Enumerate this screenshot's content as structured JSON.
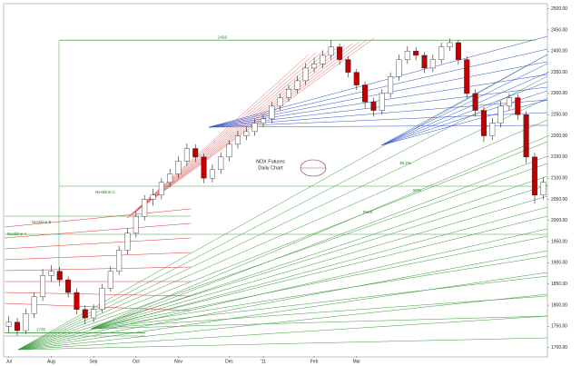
{
  "chart_data": {
    "type": "candlestick",
    "title": "NDX Futures",
    "subtitle": "Daily Chart",
    "categories": [
      "Jul",
      null,
      null,
      null,
      null,
      "Aug",
      null,
      null,
      null,
      null,
      "Sep",
      null,
      null,
      null,
      null,
      "Oct",
      null,
      null,
      null,
      null,
      "Nov",
      null,
      null,
      null,
      null,
      null,
      "Dec",
      null,
      null,
      null,
      "'11",
      null,
      null,
      null,
      null,
      null,
      "Feb",
      null,
      null,
      null,
      null,
      "Mar",
      null,
      null,
      null,
      null,
      null,
      null,
      null,
      null,
      null,
      null,
      null,
      null,
      null,
      null,
      null,
      null,
      null,
      null,
      null,
      null,
      null,
      null
    ],
    "open": [
      1750,
      1760,
      1740,
      1780,
      1820,
      1870,
      1880,
      1860,
      1830,
      1790,
      1770,
      1790,
      1840,
      1880,
      1930,
      1970,
      2010,
      2050,
      2060,
      2090,
      2110,
      2140,
      2170,
      2150,
      2100,
      2120,
      2150,
      2180,
      2200,
      2210,
      2230,
      2240,
      2270,
      2290,
      2310,
      2330,
      2360,
      2370,
      2390,
      2410,
      2380,
      2350,
      2320,
      2280,
      2260,
      2300,
      2340,
      2380,
      2400,
      2390,
      2360,
      2380,
      2410,
      2420,
      2380,
      2300,
      2260,
      2200,
      2230,
      2270,
      2290,
      2250,
      2150,
      2060
    ],
    "high": [
      1775,
      1770,
      1792,
      1830,
      1885,
      1895,
      1890,
      1868,
      1840,
      1800,
      1802,
      1850,
      1892,
      1940,
      1982,
      2022,
      2060,
      2075,
      2100,
      2122,
      2152,
      2182,
      2180,
      2158,
      2132,
      2160,
      2190,
      2212,
      2222,
      2240,
      2252,
      2280,
      2300,
      2320,
      2342,
      2372,
      2385,
      2402,
      2426,
      2418,
      2388,
      2358,
      2328,
      2290,
      2310,
      2350,
      2392,
      2412,
      2410,
      2398,
      2392,
      2420,
      2430,
      2426,
      2388,
      2310,
      2268,
      2242,
      2282,
      2300,
      2298,
      2258,
      2160,
      2102
    ],
    "low": [
      1735,
      1728,
      1732,
      1770,
      1810,
      1855,
      1845,
      1818,
      1778,
      1755,
      1760,
      1782,
      1832,
      1872,
      1920,
      1960,
      2000,
      2035,
      2050,
      2080,
      2100,
      2130,
      2138,
      2088,
      2090,
      2110,
      2140,
      2170,
      2190,
      2200,
      2220,
      2230,
      2260,
      2280,
      2300,
      2320,
      2350,
      2360,
      2380,
      2368,
      2338,
      2308,
      2265,
      2245,
      2250,
      2290,
      2330,
      2370,
      2378,
      2348,
      2350,
      2370,
      2400,
      2368,
      2288,
      2245,
      2185,
      2190,
      2220,
      2260,
      2238,
      2135,
      2040,
      2050
    ],
    "close": [
      1760,
      1740,
      1780,
      1820,
      1870,
      1880,
      1860,
      1830,
      1790,
      1770,
      1790,
      1840,
      1880,
      1930,
      1970,
      2010,
      2050,
      2060,
      2090,
      2110,
      2140,
      2170,
      2150,
      2100,
      2120,
      2150,
      2180,
      2200,
      2210,
      2230,
      2240,
      2270,
      2290,
      2310,
      2330,
      2360,
      2370,
      2390,
      2410,
      2380,
      2350,
      2320,
      2280,
      2260,
      2300,
      2340,
      2380,
      2400,
      2390,
      2360,
      2380,
      2410,
      2420,
      2380,
      2300,
      2260,
      2200,
      2230,
      2270,
      2290,
      2250,
      2150,
      2060,
      2090
    ],
    "up_color": "#ffffff",
    "down_color": "#c00000",
    "ylim": [
      1680,
      2510
    ],
    "yticks": [
      {
        "value": 1700,
        "label": "1700.00"
      },
      {
        "value": 1750,
        "label": "1750.00"
      },
      {
        "value": 1800,
        "label": "1800.00"
      },
      {
        "value": 1850,
        "label": "1850.00"
      },
      {
        "value": 1900,
        "label": "1900.00"
      },
      {
        "value": 1950,
        "label": "1950.00"
      },
      {
        "value": 2000,
        "label": "2000.00"
      },
      {
        "value": 2050,
        "label": "2050.00"
      },
      {
        "value": 2100,
        "label": "2100.00"
      },
      {
        "value": 2150,
        "label": "2150.00"
      },
      {
        "value": 2200,
        "label": "2200.00"
      },
      {
        "value": 2250,
        "label": "2250.00"
      },
      {
        "value": 2300,
        "label": "2300.00"
      },
      {
        "value": 2350,
        "label": "2350.00"
      },
      {
        "value": 2400,
        "label": "2400.00"
      },
      {
        "value": 2450,
        "label": "2450.00"
      },
      {
        "value": 2500,
        "label": "2500.00"
      }
    ],
    "levels": [
      {
        "value": 2426,
        "label": "2426"
      },
      {
        "value": 1735,
        "label": "1735"
      }
    ],
    "annotations": [
      "Neckline A",
      "Neckline B",
      "Neckline C",
      "38.2%",
      "50%",
      "Pivot"
    ]
  }
}
